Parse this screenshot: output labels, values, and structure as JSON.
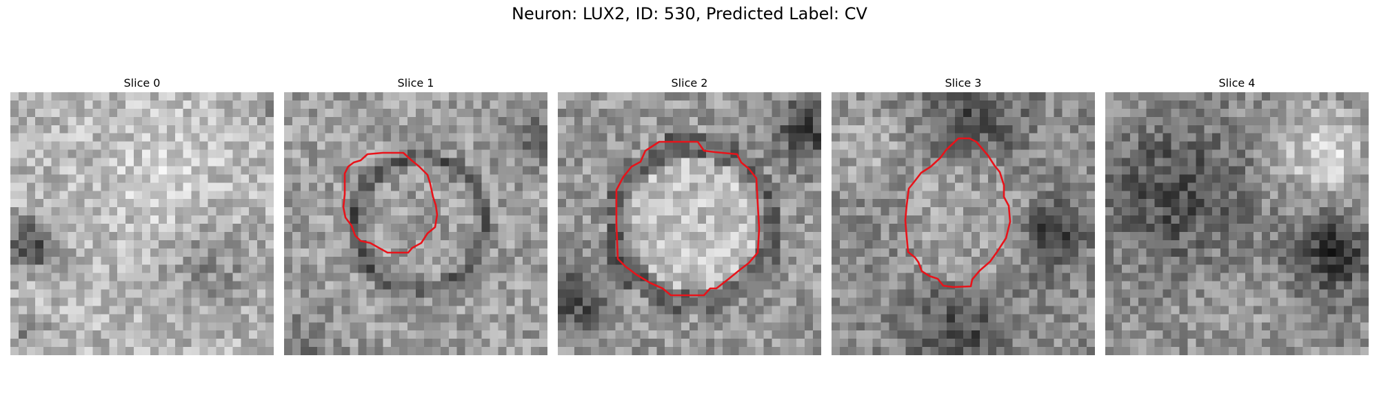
{
  "figure": {
    "title": "Neuron: LUX2, ID: 530, Predicted Label: CV"
  },
  "panels": [
    {
      "title": "Slice 0",
      "has_contour": false
    },
    {
      "title": "Slice 1",
      "has_contour": true
    },
    {
      "title": "Slice 2",
      "has_contour": true
    },
    {
      "title": "Slice 3",
      "has_contour": true
    },
    {
      "title": "Slice 4",
      "has_contour": false
    }
  ],
  "colors": {
    "contour": "#e8131a",
    "colormap": "grayscale"
  }
}
